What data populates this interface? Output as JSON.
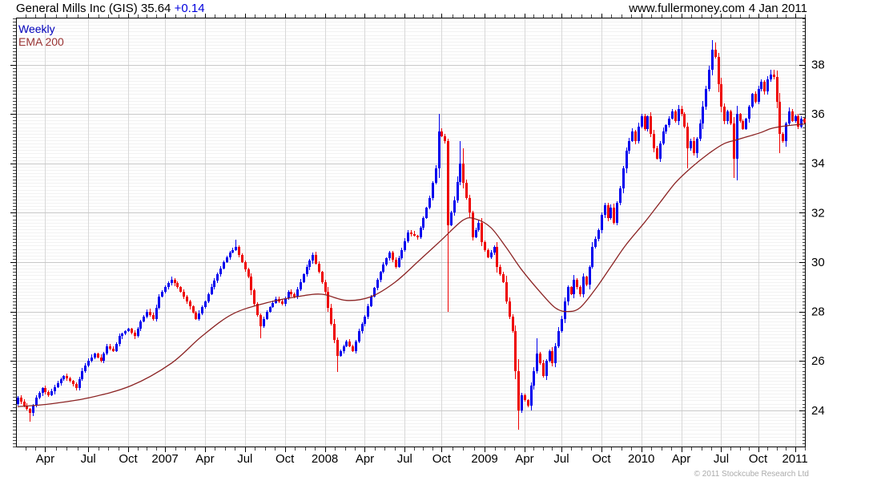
{
  "header": {
    "title_main": "General Mills Inc (GIS) 35.64 ",
    "title_change": "+0.14",
    "website": "www.fullermoney.com",
    "date": "4 Jan 2011"
  },
  "legend": {
    "timeframe": "Weekly",
    "indicator": "EMA 200"
  },
  "footer": {
    "copyright": "© 2011 Stockcube Research Ltd"
  },
  "colors": {
    "up": "#0000ee",
    "down": "#ee0000",
    "ema": "#8b2323",
    "grid_minor": "#f2f2f2",
    "grid_major": "#c8c8c8",
    "grid_vertical": "#d8d8d8",
    "axis": "#000000",
    "tick": "#444444",
    "label": "#000000"
  },
  "chart_data": {
    "type": "candlestick",
    "symbol": "GIS",
    "title": "General Mills Inc (GIS)",
    "timeframe": "weekly",
    "last_price": 35.64,
    "change": 0.14,
    "overlay": "EMA 200",
    "ylim": [
      22.5,
      39.9
    ],
    "y_ticks": [
      24,
      26,
      28,
      30,
      32,
      34,
      36,
      38
    ],
    "n_weeks": 257,
    "x_ticks": [
      {
        "label": "Apr",
        "week": 9
      },
      {
        "label": "Jul",
        "week": 23
      },
      {
        "label": "Oct",
        "week": 36
      },
      {
        "label": "2007",
        "week": 48
      },
      {
        "label": "Apr",
        "week": 61
      },
      {
        "label": "Jul",
        "week": 74
      },
      {
        "label": "Oct",
        "week": 87
      },
      {
        "label": "2008",
        "week": 100
      },
      {
        "label": "Apr",
        "week": 113
      },
      {
        "label": "Jul",
        "week": 126
      },
      {
        "label": "Oct",
        "week": 138
      },
      {
        "label": "2009",
        "week": 152
      },
      {
        "label": "Apr",
        "week": 165
      },
      {
        "label": "Jul",
        "week": 177
      },
      {
        "label": "Oct",
        "week": 190
      },
      {
        "label": "2010",
        "week": 203
      },
      {
        "label": "Apr",
        "week": 216
      },
      {
        "label": "Jul",
        "week": 229
      },
      {
        "label": "Oct",
        "week": 241
      },
      {
        "label": "2011",
        "week": 253
      }
    ],
    "close_anchors": [
      [
        0,
        24.5
      ],
      [
        2,
        24.2
      ],
      [
        4,
        23.9
      ],
      [
        6,
        24.5
      ],
      [
        8,
        24.9
      ],
      [
        10,
        24.6
      ],
      [
        13,
        25.1
      ],
      [
        15,
        25.4
      ],
      [
        17,
        25.2
      ],
      [
        19,
        24.9
      ],
      [
        21,
        25.6
      ],
      [
        23,
        26.0
      ],
      [
        25,
        26.3
      ],
      [
        27,
        26.0
      ],
      [
        29,
        26.6
      ],
      [
        31,
        26.4
      ],
      [
        33,
        27.0
      ],
      [
        36,
        27.3
      ],
      [
        38,
        27.0
      ],
      [
        40,
        27.6
      ],
      [
        42,
        28.0
      ],
      [
        44,
        27.7
      ],
      [
        46,
        28.6
      ],
      [
        48,
        29.0
      ],
      [
        50,
        29.3
      ],
      [
        52,
        29.0
      ],
      [
        54,
        28.6
      ],
      [
        56,
        28.2
      ],
      [
        58,
        27.7
      ],
      [
        61,
        28.4
      ],
      [
        63,
        29.0
      ],
      [
        65,
        29.5
      ],
      [
        67,
        30.0
      ],
      [
        69,
        30.4
      ],
      [
        71,
        30.6
      ],
      [
        73,
        30.0
      ],
      [
        75,
        29.4
      ],
      [
        77,
        28.3
      ],
      [
        79,
        27.4
      ],
      [
        81,
        28.0
      ],
      [
        84,
        28.5
      ],
      [
        86,
        28.3
      ],
      [
        88,
        28.8
      ],
      [
        90,
        28.6
      ],
      [
        92,
        29.2
      ],
      [
        94,
        29.8
      ],
      [
        96,
        30.3
      ],
      [
        98,
        29.6
      ],
      [
        100,
        28.8
      ],
      [
        102,
        27.5
      ],
      [
        104,
        26.2
      ],
      [
        107,
        26.8
      ],
      [
        109,
        26.4
      ],
      [
        111,
        27.2
      ],
      [
        113,
        27.8
      ],
      [
        115,
        28.6
      ],
      [
        117,
        29.3
      ],
      [
        119,
        29.9
      ],
      [
        121,
        30.4
      ],
      [
        123,
        29.8
      ],
      [
        125,
        30.5
      ],
      [
        127,
        31.2
      ],
      [
        130,
        31.0
      ],
      [
        132,
        31.8
      ],
      [
        134,
        32.6
      ],
      [
        136,
        33.8
      ],
      [
        137,
        35.3
      ],
      [
        139,
        34.9
      ],
      [
        140,
        31.5
      ],
      [
        142,
        32.5
      ],
      [
        144,
        34.0
      ],
      [
        145,
        33.2
      ],
      [
        147,
        32.0
      ],
      [
        148,
        31.0
      ],
      [
        150,
        31.6
      ],
      [
        151,
        30.8
      ],
      [
        153,
        30.2
      ],
      [
        155,
        30.6
      ],
      [
        156,
        29.8
      ],
      [
        158,
        29.2
      ],
      [
        159,
        28.4
      ],
      [
        161,
        27.2
      ],
      [
        162,
        25.6
      ],
      [
        163,
        24.0
      ],
      [
        164,
        24.6
      ],
      [
        166,
        24.2
      ],
      [
        167,
        25.0
      ],
      [
        168,
        25.6
      ],
      [
        169,
        26.3
      ],
      [
        170,
        25.9
      ],
      [
        171,
        25.4
      ],
      [
        172,
        26.0
      ],
      [
        173,
        26.4
      ],
      [
        174,
        25.9
      ],
      [
        175,
        26.6
      ],
      [
        176,
        27.2
      ],
      [
        177,
        27.7
      ],
      [
        178,
        28.4
      ],
      [
        179,
        29.0
      ],
      [
        180,
        28.7
      ],
      [
        181,
        29.3
      ],
      [
        182,
        29.0
      ],
      [
        183,
        28.7
      ],
      [
        184,
        29.4
      ],
      [
        185,
        29.1
      ],
      [
        186,
        29.8
      ],
      [
        187,
        30.6
      ],
      [
        189,
        31.3
      ],
      [
        190,
        31.9
      ],
      [
        191,
        32.3
      ],
      [
        192,
        31.8
      ],
      [
        193,
        32.2
      ],
      [
        194,
        31.6
      ],
      [
        195,
        32.4
      ],
      [
        196,
        33.0
      ],
      [
        197,
        33.8
      ],
      [
        198,
        34.5
      ],
      [
        199,
        34.9
      ],
      [
        200,
        35.3
      ],
      [
        201,
        34.9
      ],
      [
        202,
        35.5
      ],
      [
        203,
        35.9
      ],
      [
        204,
        35.4
      ],
      [
        205,
        35.9
      ],
      [
        206,
        35.2
      ],
      [
        207,
        34.6
      ],
      [
        208,
        34.2
      ],
      [
        209,
        34.8
      ],
      [
        210,
        35.3
      ],
      [
        212,
        35.8
      ],
      [
        213,
        36.1
      ],
      [
        214,
        35.7
      ],
      [
        215,
        36.2
      ],
      [
        216,
        36.0
      ],
      [
        217,
        35.5
      ],
      [
        218,
        34.6
      ],
      [
        219,
        34.9
      ],
      [
        220,
        34.4
      ],
      [
        221,
        35.0
      ],
      [
        222,
        35.6
      ],
      [
        223,
        36.3
      ],
      [
        224,
        37.0
      ],
      [
        225,
        37.8
      ],
      [
        226,
        38.6
      ],
      [
        227,
        38.3
      ],
      [
        228,
        37.2
      ],
      [
        229,
        36.3
      ],
      [
        230,
        35.7
      ],
      [
        231,
        36.1
      ],
      [
        232,
        35.6
      ],
      [
        233,
        34.2
      ],
      [
        234,
        36.0
      ],
      [
        236,
        35.4
      ],
      [
        237,
        35.8
      ],
      [
        238,
        36.3
      ],
      [
        239,
        36.8
      ],
      [
        240,
        36.5
      ],
      [
        241,
        37.0
      ],
      [
        242,
        37.3
      ],
      [
        243,
        36.9
      ],
      [
        244,
        37.4
      ],
      [
        245,
        37.6
      ],
      [
        246,
        37.5
      ],
      [
        247,
        36.5
      ],
      [
        248,
        35.2
      ],
      [
        249,
        34.9
      ],
      [
        250,
        35.6
      ],
      [
        251,
        36.1
      ],
      [
        252,
        35.7
      ],
      [
        253,
        35.9
      ],
      [
        254,
        35.5
      ],
      [
        255,
        35.8
      ],
      [
        256,
        35.64
      ]
    ],
    "wick_overrides": {
      "4": {
        "low": 23.55
      },
      "71": {
        "high": 30.9
      },
      "79": {
        "low": 26.9
      },
      "104": {
        "low": 25.55
      },
      "137": {
        "high": 36.0
      },
      "140": {
        "high": 35.0,
        "low": 28.0
      },
      "144": {
        "high": 34.9
      },
      "145": {
        "high": 34.6
      },
      "163": {
        "low": 23.2
      },
      "169": {
        "high": 26.9
      },
      "218": {
        "low": 33.8
      },
      "226": {
        "high": 39.0
      },
      "227": {
        "high": 38.9
      },
      "233": {
        "low": 33.4
      },
      "234": {
        "low": 33.3
      },
      "245": {
        "high": 37.8
      },
      "246": {
        "high": 37.8
      },
      "248": {
        "low": 34.4
      }
    },
    "ema200_anchors": [
      [
        0,
        24.15
      ],
      [
        10,
        24.25
      ],
      [
        23,
        24.5
      ],
      [
        37,
        25.0
      ],
      [
        50,
        25.9
      ],
      [
        60,
        27.0
      ],
      [
        70,
        27.9
      ],
      [
        81,
        28.35
      ],
      [
        91,
        28.6
      ],
      [
        99,
        28.7
      ],
      [
        107,
        28.45
      ],
      [
        115,
        28.6
      ],
      [
        123,
        29.2
      ],
      [
        131,
        30.1
      ],
      [
        138,
        30.9
      ],
      [
        145,
        31.7
      ],
      [
        149,
        31.75
      ],
      [
        154,
        31.4
      ],
      [
        159,
        30.6
      ],
      [
        164,
        29.7
      ],
      [
        170,
        28.8
      ],
      [
        175,
        28.15
      ],
      [
        179,
        28.0
      ],
      [
        183,
        28.15
      ],
      [
        188,
        28.9
      ],
      [
        193,
        29.8
      ],
      [
        198,
        30.7
      ],
      [
        204,
        31.6
      ],
      [
        209,
        32.4
      ],
      [
        214,
        33.2
      ],
      [
        219,
        33.8
      ],
      [
        225,
        34.4
      ],
      [
        230,
        34.8
      ],
      [
        234,
        34.95
      ],
      [
        238,
        35.1
      ],
      [
        242,
        35.25
      ],
      [
        245,
        35.4
      ],
      [
        249,
        35.5
      ],
      [
        257,
        35.6
      ]
    ]
  }
}
